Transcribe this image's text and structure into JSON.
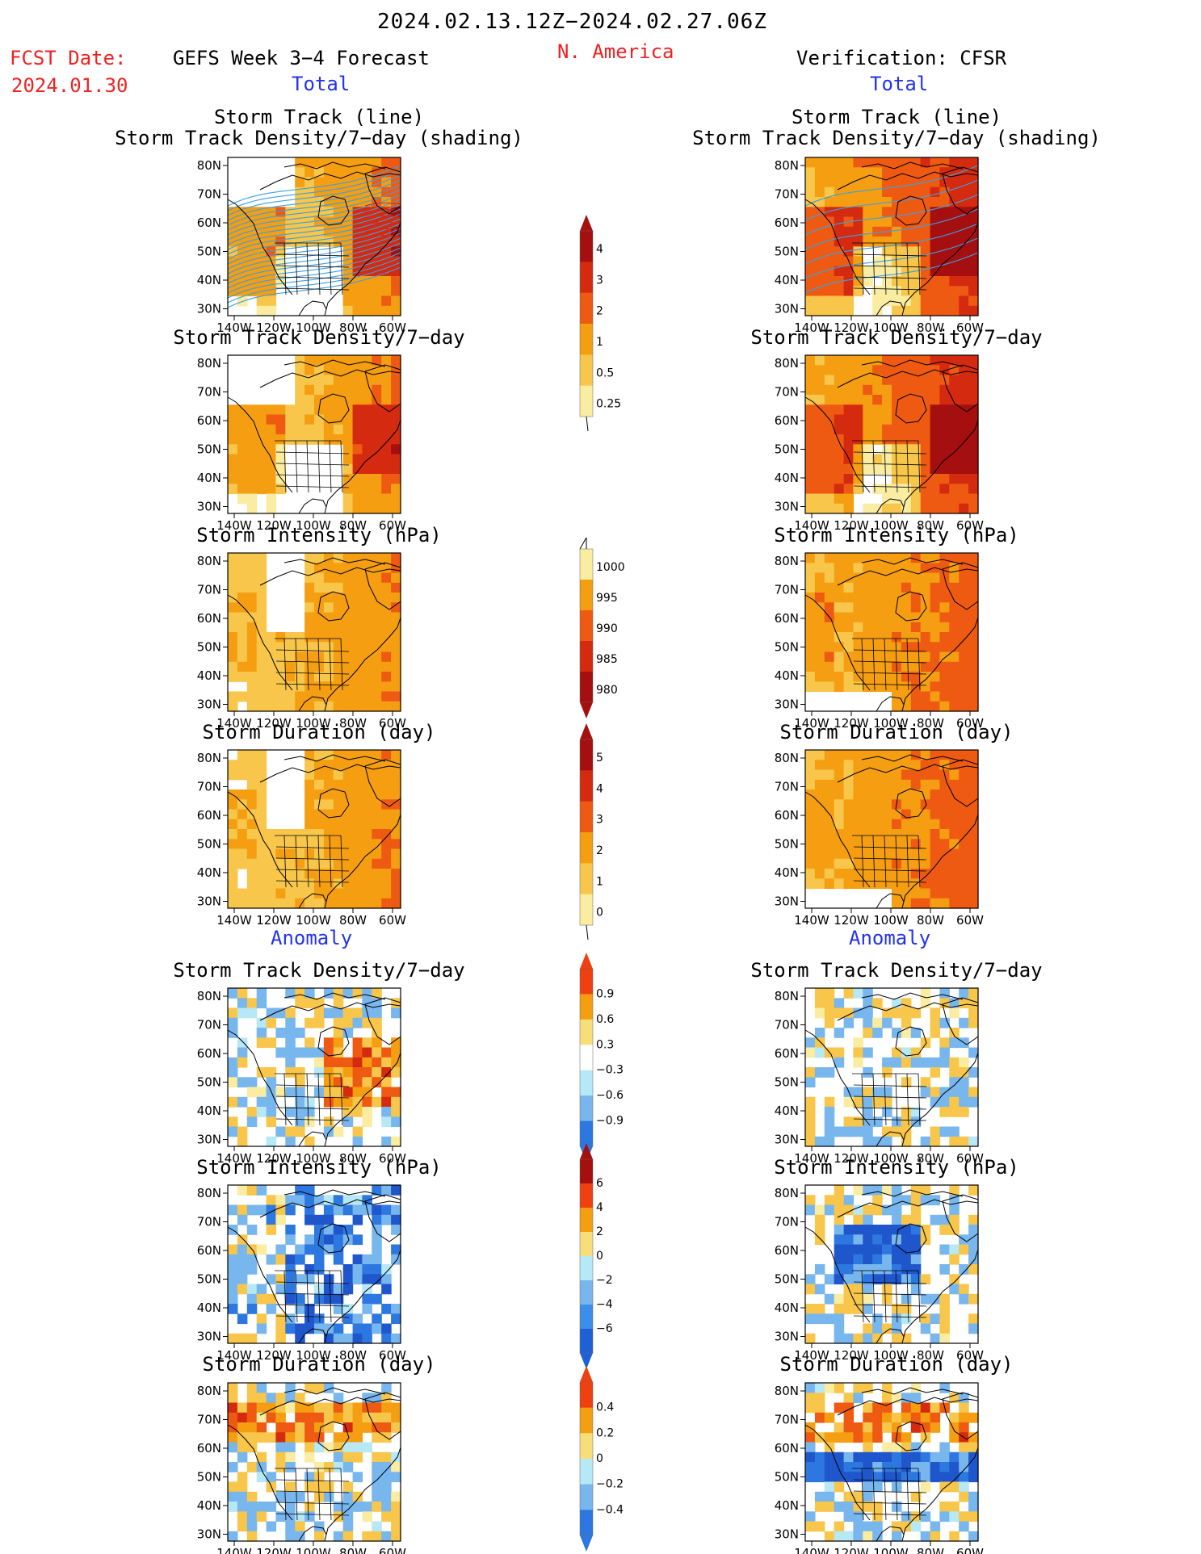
{
  "header": {
    "date_range": "2024.02.13.12Z−2024.02.27.06Z",
    "fcst_label": "FCST Date:",
    "fcst_date": "2024.01.30",
    "left_title": "GEFS Week 3−4 Forecast",
    "region": "N. America",
    "right_title": "Verification: CFSR"
  },
  "sections": {
    "total": "Total",
    "anomaly": "Anomaly"
  },
  "axes": {
    "lat_ticks": [
      "80N",
      "70N",
      "60N",
      "50N",
      "40N",
      "30N"
    ],
    "lon_ticks": [
      "140W",
      "120W",
      "100W",
      "80W",
      "60W"
    ]
  },
  "panels": {
    "track_title_1": "Storm Track (line)",
    "track_title_2": "Storm Track Density/7−day (shading)",
    "density": "Storm Track Density/7−day",
    "intensity": "Storm Intensity (hPa)",
    "duration": "Storm Duration (day)"
  },
  "colorbars": {
    "density_total": {
      "labels": [
        "4",
        "3",
        "2",
        "1",
        "0.5",
        "0.25"
      ],
      "colors": [
        "#a50f0f",
        "#d42a10",
        "#ee5a12",
        "#f59e12",
        "#f7c64a",
        "#faeca0"
      ]
    },
    "intensity_total": {
      "labels": [
        "1000",
        "995",
        "990",
        "985",
        "980"
      ],
      "colors": [
        "#faeca0",
        "#f59e12",
        "#ee5a12",
        "#d42a10",
        "#a50f0f"
      ]
    },
    "duration_total": {
      "labels": [
        "5",
        "4",
        "3",
        "2",
        "1",
        "0"
      ],
      "colors": [
        "#a50f0f",
        "#d42a10",
        "#ee5a12",
        "#f59e12",
        "#f7c64a",
        "#faeca0"
      ]
    },
    "density_anom": {
      "labels": [
        "0.9",
        "0.6",
        "0.3",
        "−0.3",
        "−0.6",
        "−0.9"
      ],
      "colors": [
        "#ee4010",
        "#f59e12",
        "#f7de7a",
        "#ffffff",
        "#b6e8f6",
        "#78b6ee",
        "#2d78e0"
      ]
    },
    "intensity_anom": {
      "labels": [
        "6",
        "4",
        "2",
        "0",
        "−2",
        "−4",
        "−6"
      ],
      "colors": [
        "#a50f0f",
        "#ee4010",
        "#f59e12",
        "#f7de7a",
        "#b6e8f6",
        "#78b6ee",
        "#3d8ee8",
        "#2060d6"
      ]
    },
    "duration_anom": {
      "labels": [
        "0.4",
        "0.2",
        "0",
        "−0.2",
        "−0.4"
      ],
      "colors": [
        "#ee4010",
        "#f59e12",
        "#f7de7a",
        "#b6e8f6",
        "#78b6ee",
        "#2d78e0"
      ]
    }
  },
  "colors": {
    "red_text": "#ee2222",
    "blue_text": "#2233ee",
    "track_line": "#3aa0e6"
  }
}
